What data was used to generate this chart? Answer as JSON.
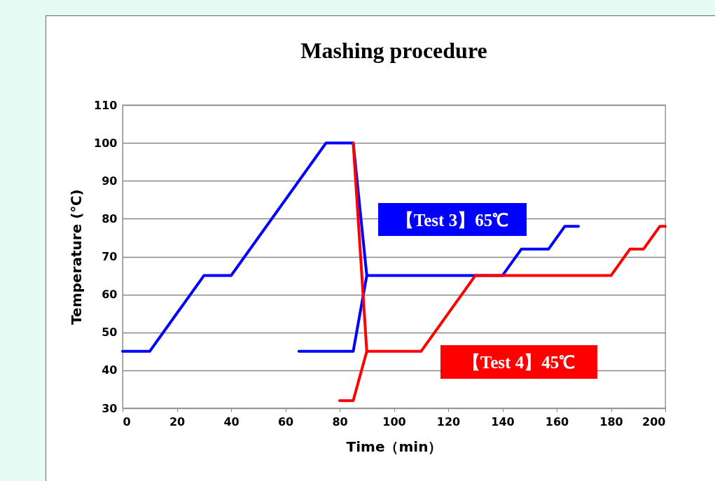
{
  "chart_data": {
    "type": "line",
    "title": "Mashing procedure",
    "xlabel": "Time（min）",
    "ylabel": "Temperature (℃)",
    "xlim": [
      0,
      200
    ],
    "xticks": [
      0,
      20,
      40,
      60,
      80,
      100,
      120,
      140,
      160,
      180,
      200
    ],
    "ylim": [
      30,
      110
    ],
    "yticks": [
      30,
      40,
      50,
      60,
      70,
      80,
      90,
      100,
      110
    ],
    "grid": "y",
    "legend": false,
    "marker": "none",
    "line_style": "solid",
    "series": [
      {
        "name": "【Test 3】65℃",
        "color": "#0000ff",
        "x": [
          0,
          10,
          30,
          40,
          75,
          85,
          90,
          140,
          147,
          157,
          163,
          168,
          null,
          65,
          85,
          90
        ],
        "values": [
          45,
          45,
          65,
          65,
          100,
          100,
          65,
          65,
          72,
          72,
          78,
          78,
          null,
          45,
          45,
          65
        ]
      },
      {
        "name": "【Test 4】45℃",
        "color": "#ff0000",
        "x": [
          80,
          85,
          90,
          110,
          130,
          180,
          187,
          192,
          198,
          200,
          null,
          85,
          90
        ],
        "values": [
          32,
          32,
          45,
          45,
          65,
          65,
          72,
          72,
          78,
          78,
          null,
          100,
          45
        ]
      }
    ]
  }
}
